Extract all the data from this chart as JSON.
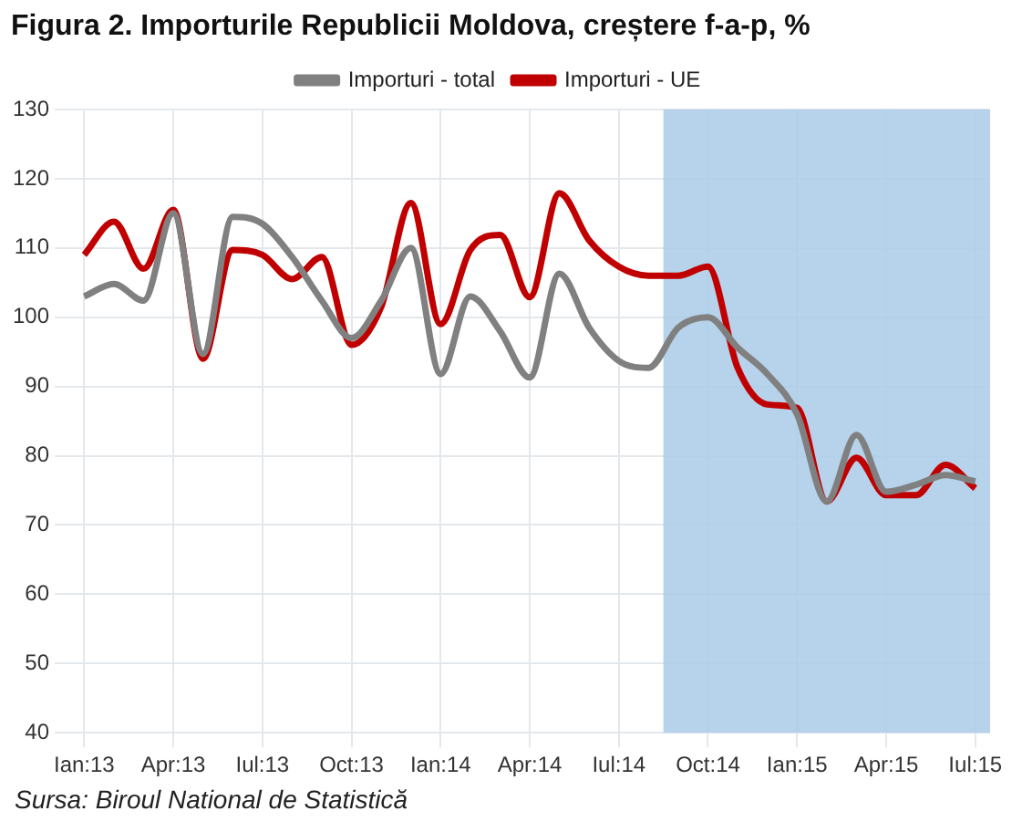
{
  "chart_data": {
    "type": "line",
    "title": "Figura 2. Importurile Republicii Moldova, creștere f-a-p, %",
    "x": [
      "2013-01",
      "2013-02",
      "2013-03",
      "2013-04",
      "2013-05",
      "2013-06",
      "2013-07",
      "2013-08",
      "2013-09",
      "2013-10",
      "2013-11",
      "2013-12",
      "2014-01",
      "2014-02",
      "2014-03",
      "2014-04",
      "2014-05",
      "2014-06",
      "2014-07",
      "2014-08",
      "2014-09",
      "2014-10",
      "2014-11",
      "2014-12",
      "2015-01",
      "2015-02",
      "2015-03",
      "2015-04",
      "2015-05",
      "2015-06",
      "2015-07"
    ],
    "series": [
      {
        "name": "Importuri - total",
        "color": "#808080",
        "values": [
          103,
          104.8,
          102.4,
          115,
          94.7,
          114.5,
          113.5,
          108.7,
          102.4,
          97,
          102.4,
          110,
          91.8,
          103,
          98,
          91.3,
          106.3,
          98.5,
          93.7,
          92.7,
          98.5,
          100,
          95.6,
          91.8,
          86,
          73.4,
          83,
          74.8,
          75.8,
          77.2,
          76.3
        ]
      },
      {
        "name": "Importuri - UE",
        "color": "#c00000",
        "values": [
          109,
          113.8,
          107,
          115.5,
          94,
          109.7,
          109,
          105.5,
          108.7,
          96,
          101.5,
          116.5,
          99,
          109.7,
          111.9,
          102.9,
          117.9,
          111.1,
          107.3,
          106,
          106,
          107.3,
          92.7,
          87.4,
          86.9,
          73.4,
          79.7,
          74.3,
          74.3,
          78.7,
          75.3
        ]
      }
    ],
    "xlim": [
      "2012-12-16",
      "2015-07-16"
    ],
    "xticks": [
      {
        "value": "2013-01",
        "label": "Ian:13"
      },
      {
        "value": "2013-04",
        "label": "Apr:13"
      },
      {
        "value": "2013-07",
        "label": "Iul:13"
      },
      {
        "value": "2013-10",
        "label": "Oct:13"
      },
      {
        "value": "2014-01",
        "label": "Ian:14"
      },
      {
        "value": "2014-04",
        "label": "Apr:14"
      },
      {
        "value": "2014-07",
        "label": "Iul:14"
      },
      {
        "value": "2014-10",
        "label": "Oct:14"
      },
      {
        "value": "2015-01",
        "label": "Ian:15"
      },
      {
        "value": "2015-04",
        "label": "Apr:15"
      },
      {
        "value": "2015-07",
        "label": "Iul:15"
      }
    ],
    "ylim": [
      40,
      130
    ],
    "yticks": [
      40,
      50,
      60,
      70,
      80,
      90,
      100,
      110,
      120,
      130
    ],
    "bands": [
      {
        "axis": "x",
        "from": "2014-08-16",
        "to": "2015-07-16",
        "color": "#a9cbe8"
      }
    ],
    "annotations": [
      "Sursa: Biroul National de Statistică"
    ],
    "grid": true,
    "legend": "top",
    "marker": "none",
    "line_style": "solid"
  }
}
